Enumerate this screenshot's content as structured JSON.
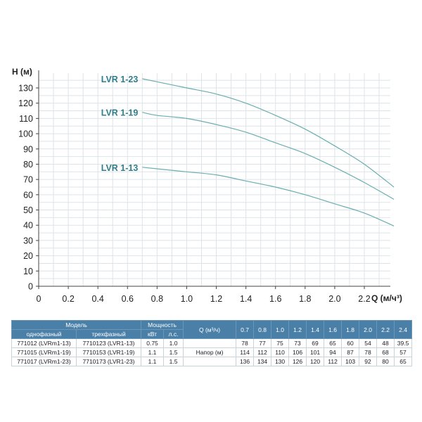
{
  "chart_data": {
    "type": "line",
    "xlabel": "Q (м/ч³)",
    "ylabel": "H (м)",
    "xlim": [
      0,
      2.4
    ],
    "ylim": [
      0,
      135
    ],
    "xticks": [
      "0",
      "0.2",
      "0.4",
      "0.6",
      "0.8",
      "1.0",
      "1.2",
      "1.4",
      "1.6",
      "1.8",
      "2.0",
      "2.2"
    ],
    "yticks": [
      "0",
      "10",
      "20",
      "30",
      "40",
      "50",
      "60",
      "70",
      "80",
      "90",
      "100",
      "110",
      "120",
      "130"
    ],
    "grid": true,
    "line_color": "#6aaeb0",
    "label_color": "#2f7f8a",
    "series": [
      {
        "name": "LVR 1-23",
        "x": [
          0.7,
          0.8,
          1.0,
          1.2,
          1.4,
          1.6,
          1.8,
          2.0,
          2.2,
          2.4
        ],
        "y": [
          136,
          134,
          130,
          126,
          120,
          112,
          103,
          92,
          80,
          65
        ]
      },
      {
        "name": "LVR 1-19",
        "x": [
          0.7,
          0.8,
          1.0,
          1.2,
          1.4,
          1.6,
          1.8,
          2.0,
          2.2,
          2.4
        ],
        "y": [
          114,
          112,
          110,
          106,
          101,
          94,
          87,
          78,
          68,
          57
        ]
      },
      {
        "name": "LVR 1-13",
        "x": [
          0.7,
          0.8,
          1.0,
          1.2,
          1.4,
          1.6,
          1.8,
          2.0,
          2.2,
          2.4
        ],
        "y": [
          78,
          77,
          75,
          73,
          69,
          65,
          60,
          54,
          48,
          39.5
        ]
      }
    ]
  },
  "table": {
    "model_header": "Модель",
    "power_header": "Мощность",
    "q_header": "Q (м³/ч)",
    "single_phase": "однофазный",
    "three_phase": "трехфазный",
    "kw": "кВт",
    "hp": "л.с.",
    "head_label": "Напор (м)",
    "q_values": [
      "0.7",
      "0.8",
      "1.0",
      "1.2",
      "1.4",
      "1.6",
      "1.8",
      "2.0",
      "2.2",
      "2.4"
    ],
    "header_color": "#4a7fa8",
    "rows": [
      {
        "single": "771012 (LVRm1-13)",
        "three": "7710123 (LVR1-13)",
        "kw": "0.75",
        "hp": "1.0",
        "head": [
          "78",
          "77",
          "75",
          "73",
          "69",
          "65",
          "60",
          "54",
          "48",
          "39.5"
        ]
      },
      {
        "single": "771015 (LVRm1-19)",
        "three": "7710153 (LVR1-19)",
        "kw": "1.1",
        "hp": "1.5",
        "head": [
          "114",
          "112",
          "110",
          "106",
          "101",
          "94",
          "87",
          "78",
          "68",
          "57"
        ]
      },
      {
        "single": "771017 (LVRm1-23)",
        "three": "7710173 (LVR1-23)",
        "kw": "1.1",
        "hp": "1.5",
        "head": [
          "136",
          "134",
          "130",
          "126",
          "120",
          "112",
          "103",
          "92",
          "80",
          "65"
        ]
      }
    ]
  }
}
